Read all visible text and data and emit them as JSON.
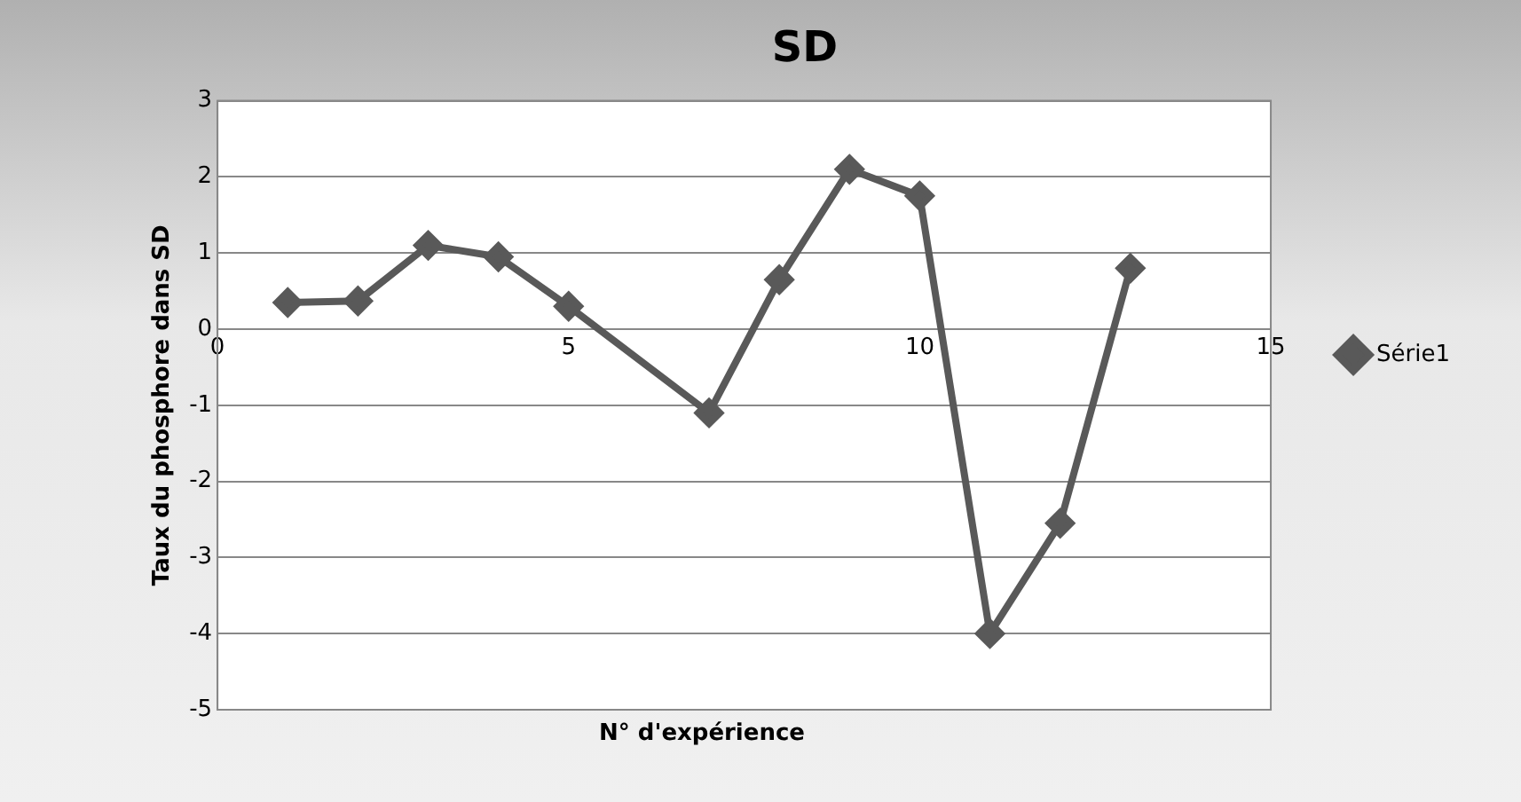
{
  "chart_data": {
    "type": "line",
    "title": "SD",
    "xlabel": "N° d'expérience",
    "ylabel": "Taux du phosphore dans SD",
    "x": [
      1,
      2,
      3,
      4,
      5,
      7,
      8,
      9,
      10,
      11,
      12,
      13
    ],
    "series": [
      {
        "name": "Série1",
        "color": "#595959",
        "values": [
          0.35,
          0.37,
          1.1,
          0.95,
          0.3,
          -1.1,
          0.65,
          2.1,
          1.75,
          -4.0,
          -2.55,
          0.8
        ]
      }
    ],
    "xlim": [
      0,
      15
    ],
    "xticks": [
      0,
      5,
      10,
      15
    ],
    "ylim": [
      -5,
      3
    ],
    "yticks": [
      -5,
      -4,
      -3,
      -2,
      -1,
      0,
      1,
      2,
      3
    ],
    "grid": "y",
    "legend": "right",
    "marker": "diamond",
    "line_style": "solid"
  }
}
